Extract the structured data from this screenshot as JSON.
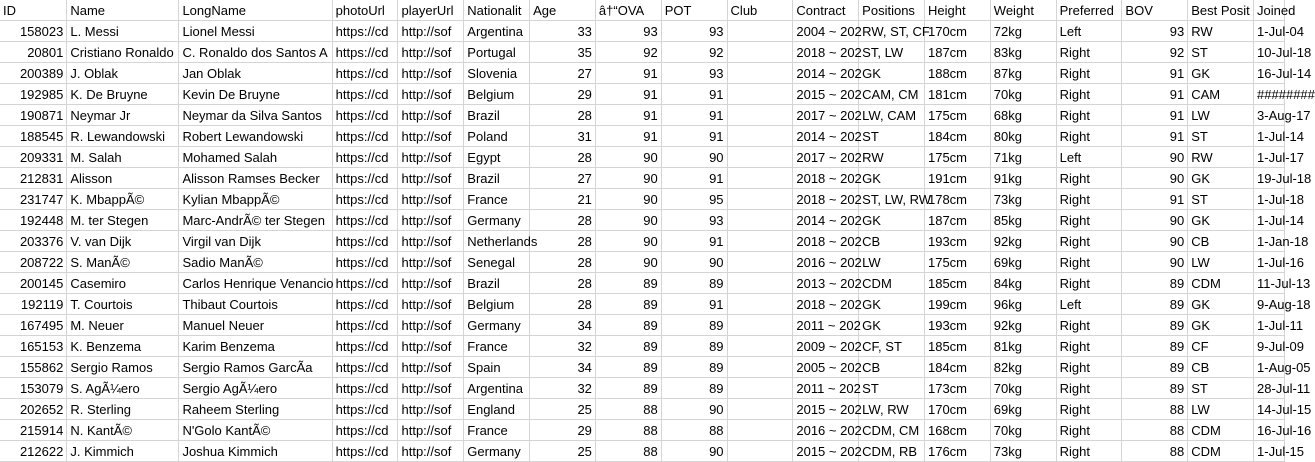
{
  "columns": [
    {
      "key": "id",
      "header": "ID",
      "align": "r"
    },
    {
      "key": "name",
      "header": "Name",
      "align": "l"
    },
    {
      "key": "long_name",
      "header": "LongName",
      "align": "l"
    },
    {
      "key": "photo_url",
      "header": "photoUrl",
      "align": "l"
    },
    {
      "key": "player_url",
      "header": "playerUrl",
      "align": "l"
    },
    {
      "key": "nationality",
      "header": "Nationalit",
      "align": "l"
    },
    {
      "key": "age",
      "header": "Age",
      "align": "r"
    },
    {
      "key": "ova",
      "header": "â†“OVA",
      "align": "r"
    },
    {
      "key": "pot",
      "header": "POT",
      "align": "r"
    },
    {
      "key": "club",
      "header": "Club",
      "align": "l"
    },
    {
      "key": "contract",
      "header": "Contract",
      "align": "l"
    },
    {
      "key": "positions",
      "header": "Positions",
      "align": "l"
    },
    {
      "key": "height",
      "header": "Height",
      "align": "l"
    },
    {
      "key": "weight",
      "header": "Weight",
      "align": "l"
    },
    {
      "key": "preferred",
      "header": "Preferred",
      "align": "l"
    },
    {
      "key": "bov",
      "header": "BOV",
      "align": "r"
    },
    {
      "key": "best_position",
      "header": "Best Posit",
      "align": "l"
    },
    {
      "key": "joined",
      "header": "Joined",
      "align": "r"
    }
  ],
  "rows": [
    [
      "158023",
      "L. Messi",
      "Lionel Messi",
      "https://cd",
      "http://sof",
      "Argentina",
      "33",
      "93",
      "93",
      "",
      "2004 ~ 202",
      "RW, ST, CF",
      "170cm",
      "72kg",
      "Left",
      "93",
      "RW",
      "1-Jul-04"
    ],
    [
      "20801",
      "Cristiano Ronaldo",
      "C. Ronaldo dos Santos A",
      "https://cd",
      "http://sof",
      "Portugal",
      "35",
      "92",
      "92",
      "",
      "2018 ~ 202",
      "ST, LW",
      "187cm",
      "83kg",
      "Right",
      "92",
      "ST",
      "10-Jul-18"
    ],
    [
      "200389",
      "J. Oblak",
      "Jan Oblak",
      "https://cd",
      "http://sof",
      "Slovenia",
      "27",
      "91",
      "93",
      "",
      "2014 ~ 202",
      "GK",
      "188cm",
      "87kg",
      "Right",
      "91",
      "GK",
      "16-Jul-14"
    ],
    [
      "192985",
      "K. De Bruyne",
      "Kevin De Bruyne",
      "https://cd",
      "http://sof",
      "Belgium",
      "29",
      "91",
      "91",
      "",
      "2015 ~ 202",
      "CAM, CM",
      "181cm",
      "70kg",
      "Right",
      "91",
      "CAM",
      "########"
    ],
    [
      "190871",
      "Neymar Jr",
      "Neymar da Silva Santos",
      "https://cd",
      "http://sof",
      "Brazil",
      "28",
      "91",
      "91",
      "",
      "2017 ~ 202",
      "LW, CAM",
      "175cm",
      "68kg",
      "Right",
      "91",
      "LW",
      "3-Aug-17"
    ],
    [
      "188545",
      "R. Lewandowski",
      "Robert Lewandowski",
      "https://cd",
      "http://sof",
      "Poland",
      "31",
      "91",
      "91",
      "",
      "2014 ~ 202",
      "ST",
      "184cm",
      "80kg",
      "Right",
      "91",
      "ST",
      "1-Jul-14"
    ],
    [
      "209331",
      "M. Salah",
      "Mohamed Salah",
      "https://cd",
      "http://sof",
      "Egypt",
      "28",
      "90",
      "90",
      "",
      "2017 ~ 202",
      "RW",
      "175cm",
      "71kg",
      "Left",
      "90",
      "RW",
      "1-Jul-17"
    ],
    [
      "212831",
      "Alisson",
      "Alisson Ramses Becker",
      "https://cd",
      "http://sof",
      "Brazil",
      "27",
      "90",
      "91",
      "",
      "2018 ~ 202",
      "GK",
      "191cm",
      "91kg",
      "Right",
      "90",
      "GK",
      "19-Jul-18"
    ],
    [
      "231747",
      "K. MbappÃ©",
      "Kylian MbappÃ©",
      "https://cd",
      "http://sof",
      "France",
      "21",
      "90",
      "95",
      "",
      "2018 ~ 202",
      "ST, LW, RW",
      "178cm",
      "73kg",
      "Right",
      "91",
      "ST",
      "1-Jul-18"
    ],
    [
      "192448",
      "M. ter Stegen",
      "Marc-AndrÃ© ter Stegen",
      "https://cd",
      "http://sof",
      "Germany",
      "28",
      "90",
      "93",
      "",
      "2014 ~ 202",
      "GK",
      "187cm",
      "85kg",
      "Right",
      "90",
      "GK",
      "1-Jul-14"
    ],
    [
      "203376",
      "V. van Dijk",
      "Virgil van Dijk",
      "https://cd",
      "http://sof",
      "Netherlands",
      "28",
      "90",
      "91",
      "",
      "2018 ~ 202",
      "CB",
      "193cm",
      "92kg",
      "Right",
      "90",
      "CB",
      "1-Jan-18"
    ],
    [
      "208722",
      "S. ManÃ©",
      "Sadio ManÃ©",
      "https://cd",
      "http://sof",
      "Senegal",
      "28",
      "90",
      "90",
      "",
      "2016 ~ 202",
      "LW",
      "175cm",
      "69kg",
      "Right",
      "90",
      "LW",
      "1-Jul-16"
    ],
    [
      "200145",
      "Casemiro",
      "Carlos Henrique Venancio",
      "https://cd",
      "http://sof",
      "Brazil",
      "28",
      "89",
      "89",
      "",
      "2013 ~ 202",
      "CDM",
      "185cm",
      "84kg",
      "Right",
      "89",
      "CDM",
      "11-Jul-13"
    ],
    [
      "192119",
      "T. Courtois",
      "Thibaut Courtois",
      "https://cd",
      "http://sof",
      "Belgium",
      "28",
      "89",
      "91",
      "",
      "2018 ~ 202",
      "GK",
      "199cm",
      "96kg",
      "Left",
      "89",
      "GK",
      "9-Aug-18"
    ],
    [
      "167495",
      "M. Neuer",
      "Manuel Neuer",
      "https://cd",
      "http://sof",
      "Germany",
      "34",
      "89",
      "89",
      "",
      "2011 ~ 202",
      "GK",
      "193cm",
      "92kg",
      "Right",
      "89",
      "GK",
      "1-Jul-11"
    ],
    [
      "165153",
      "K. Benzema",
      "Karim Benzema",
      "https://cd",
      "http://sof",
      "France",
      "32",
      "89",
      "89",
      "",
      "2009 ~ 202",
      "CF, ST",
      "185cm",
      "81kg",
      "Right",
      "89",
      "CF",
      "9-Jul-09"
    ],
    [
      "155862",
      "Sergio Ramos",
      "Sergio Ramos GarcÃ­a",
      "https://cd",
      "http://sof",
      "Spain",
      "34",
      "89",
      "89",
      "",
      "2005 ~ 202",
      "CB",
      "184cm",
      "82kg",
      "Right",
      "89",
      "CB",
      "1-Aug-05"
    ],
    [
      "153079",
      "S. AgÃ¼ero",
      "Sergio AgÃ¼ero",
      "https://cd",
      "http://sof",
      "Argentina",
      "32",
      "89",
      "89",
      "",
      "2011 ~ 202",
      "ST",
      "173cm",
      "70kg",
      "Right",
      "89",
      "ST",
      "28-Jul-11"
    ],
    [
      "202652",
      "R. Sterling",
      "Raheem Sterling",
      "https://cd",
      "http://sof",
      "England",
      "25",
      "88",
      "90",
      "",
      "2015 ~ 202",
      "LW, RW",
      "170cm",
      "69kg",
      "Right",
      "88",
      "LW",
      "14-Jul-15"
    ],
    [
      "215914",
      "N. KantÃ©",
      "N'Golo KantÃ©",
      "https://cd",
      "http://sof",
      "France",
      "29",
      "88",
      "88",
      "",
      "2016 ~ 202",
      "CDM, CM",
      "168cm",
      "70kg",
      "Right",
      "88",
      "CDM",
      "16-Jul-16"
    ],
    [
      "212622",
      "J. Kimmich",
      "Joshua Kimmich",
      "https://cd",
      "http://sof",
      "Germany",
      "25",
      "88",
      "90",
      "",
      "2015 ~ 202",
      "CDM, RB",
      "176cm",
      "73kg",
      "Right",
      "88",
      "CDM",
      "1-Jul-15"
    ]
  ]
}
